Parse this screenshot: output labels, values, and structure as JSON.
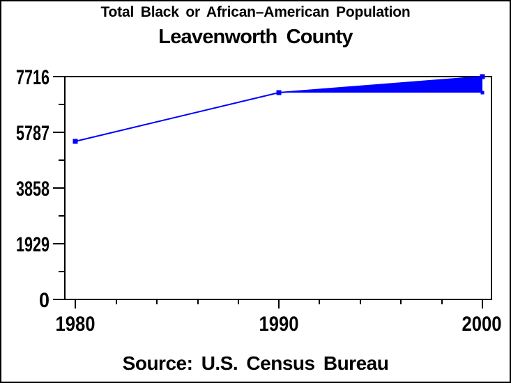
{
  "titles": {
    "title": "Total Black or African–American Population",
    "subtitle": "Leavenworth County"
  },
  "footer": {
    "source": "Source: U.S. Census Bureau"
  },
  "axes": {
    "y_tick_labels": [
      "7716",
      "5787",
      "3858",
      "1929",
      "0"
    ],
    "x_tick_labels": [
      "1980",
      "1990",
      "2000"
    ]
  },
  "colors": {
    "series": "#0000ff",
    "axis": "#000000",
    "background": "#ffffff",
    "text": "#000000"
  },
  "chart_data": {
    "type": "line",
    "title": "Total Black or African–American Population",
    "subtitle": "Leavenworth County",
    "source": "Source: U.S. Census Bureau",
    "x": [
      1980,
      1990,
      2000
    ],
    "series": [
      {
        "name": "population-line",
        "values": [
          5474,
          7161,
          7716
        ],
        "color": "#0000ff",
        "marker": "square",
        "interpolation": "join"
      },
      {
        "name": "band-lower-edge",
        "values": [
          null,
          7161,
          7161
        ],
        "color": "#0000ff",
        "marker": "square"
      }
    ],
    "fill_between": {
      "upper": "population-line",
      "lower": "band-lower-edge",
      "x_range": [
        1990,
        2000
      ],
      "color": "#0000ff",
      "note": "solid blue wedge between the rising 1990-2000 segment and the 1990 level"
    },
    "xlim": [
      1980,
      2000
    ],
    "ylim": [
      0,
      7716
    ],
    "x_ticks": [
      1980,
      1990,
      2000
    ],
    "y_ticks": [
      0,
      1929,
      3858,
      5787,
      7716
    ],
    "x_minor_tick_interval": 2,
    "y_minor_tick_interval": 964.5,
    "xlabel": "",
    "ylabel": "",
    "grid": false,
    "legend": false
  }
}
